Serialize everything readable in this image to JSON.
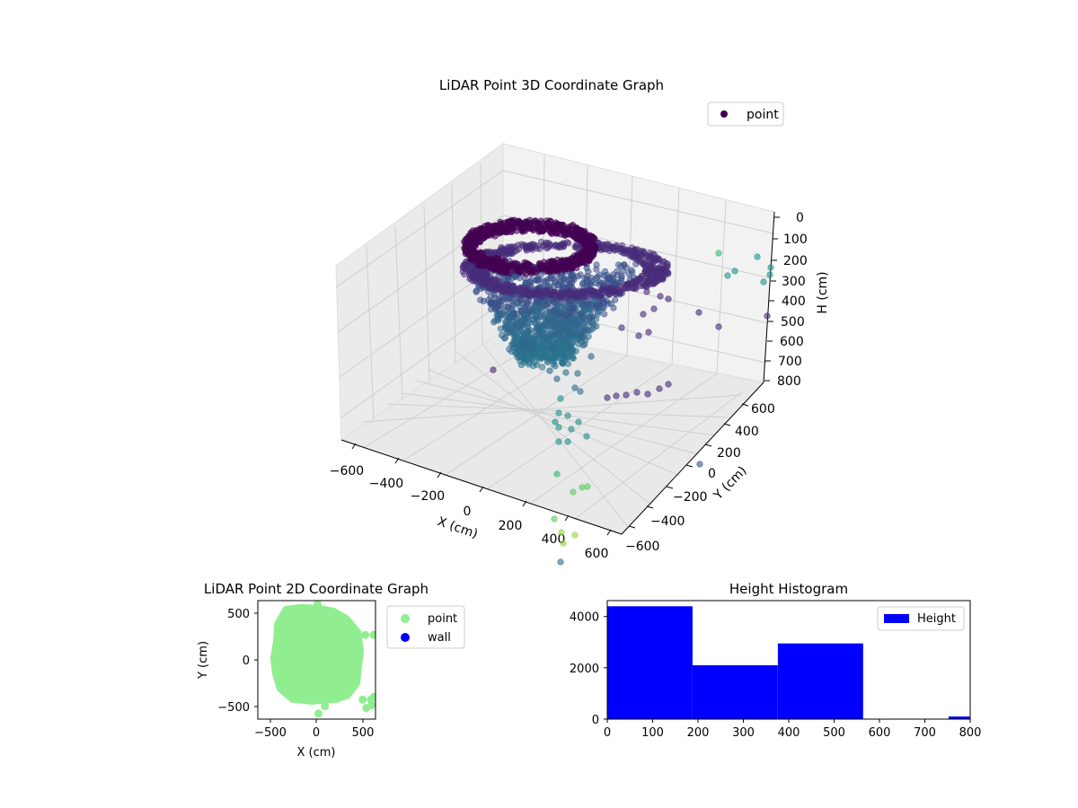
{
  "figure": {
    "background": "#ffffff",
    "accent_colors": {
      "viridis_dark": "#440154",
      "viridis_mid": "#31688e",
      "viridis_teal": "#35b779",
      "light_green": "#90ee90",
      "wall_blue": "#0000ff",
      "histogram_blue": "#0000ff"
    }
  },
  "chart_data": [
    {
      "type": "scatter",
      "title": "LiDAR Point 3D Coordinate Graph",
      "projection": "3d",
      "xlabel": "X (cm)",
      "ylabel": "Y (cm)",
      "zlabel": "H (cm)",
      "x_ticks": [
        "−600",
        "−400",
        "−200",
        "0",
        "200",
        "400",
        "600"
      ],
      "y_ticks": [
        "−600",
        "−400",
        "−200",
        "0",
        "200",
        "400",
        "600"
      ],
      "z_ticks": [
        "0",
        "100",
        "200",
        "300",
        "400",
        "500",
        "600",
        "700",
        "800"
      ],
      "xlim": [
        -650,
        650
      ],
      "ylim": [
        -650,
        650
      ],
      "zlim": [
        800,
        0
      ],
      "colormap": "viridis",
      "grid": true,
      "legend": {
        "placement": "upper-right",
        "entries": [
          {
            "label": "point",
            "color": "#440154",
            "marker": "circle"
          }
        ]
      }
    },
    {
      "type": "scatter",
      "title": "LiDAR Point 2D Coordinate Graph",
      "xlabel": "X (cm)",
      "ylabel": "Y (cm)",
      "xlim": [
        -640,
        640
      ],
      "ylim": [
        -640,
        640
      ],
      "x_ticks": [
        -500,
        0,
        500
      ],
      "x_tick_labels": [
        "−500",
        "0",
        "500"
      ],
      "y_ticks": [
        -500,
        0,
        500
      ],
      "y_tick_labels": [
        "−500",
        "0",
        "500"
      ],
      "grid": false,
      "series": [
        {
          "name": "point",
          "color": "#90ee90",
          "outline": [
            [
              -330,
              540
            ],
            [
              -180,
              560
            ],
            [
              20,
              550
            ],
            [
              180,
              520
            ],
            [
              320,
              440
            ],
            [
              440,
              300
            ],
            [
              470,
              100
            ],
            [
              450,
              -60
            ],
            [
              430,
              -250
            ],
            [
              330,
              -380
            ],
            [
              200,
              -420
            ],
            [
              -50,
              -440
            ],
            [
              -260,
              -420
            ],
            [
              -390,
              -310
            ],
            [
              -440,
              -150
            ],
            [
              -460,
              20
            ],
            [
              -430,
              200
            ],
            [
              -420,
              380
            ]
          ],
          "points": [
            [
              -320,
              540
            ],
            [
              10,
              600
            ],
            [
              -330,
              520
            ],
            [
              400,
              -170
            ],
            [
              330,
              -360
            ],
            [
              220,
              -420
            ],
            [
              530,
              270
            ],
            [
              620,
              270
            ],
            [
              500,
              -430
            ],
            [
              590,
              -430
            ],
            [
              540,
              -520
            ],
            [
              620,
              -400
            ],
            [
              20,
              -580
            ],
            [
              90,
              -500
            ],
            [
              600,
              -490
            ]
          ]
        },
        {
          "name": "wall",
          "color": "#0000ff",
          "points": []
        }
      ],
      "legend": {
        "placement": "outside-right",
        "entries": [
          {
            "label": "point",
            "color": "#90ee90"
          },
          {
            "label": "wall",
            "color": "#0000ff"
          }
        ]
      }
    },
    {
      "type": "bar",
      "title": "Height Histogram",
      "bins": [
        [
          0,
          188
        ],
        [
          188,
          376
        ],
        [
          376,
          564
        ],
        [
          564,
          752
        ],
        [
          752,
          800
        ]
      ],
      "values": [
        4400,
        2100,
        2950,
        0,
        100
      ],
      "xlim": [
        0,
        800
      ],
      "ylim": [
        0,
        4620
      ],
      "x_ticks": [
        0,
        100,
        200,
        300,
        400,
        500,
        600,
        700,
        800
      ],
      "y_ticks": [
        0,
        2000,
        4000
      ],
      "color": "#0000ff",
      "grid": false,
      "legend": {
        "placement": "upper-right",
        "entries": [
          {
            "label": "Height",
            "color": "#0000ff"
          }
        ]
      }
    }
  ]
}
